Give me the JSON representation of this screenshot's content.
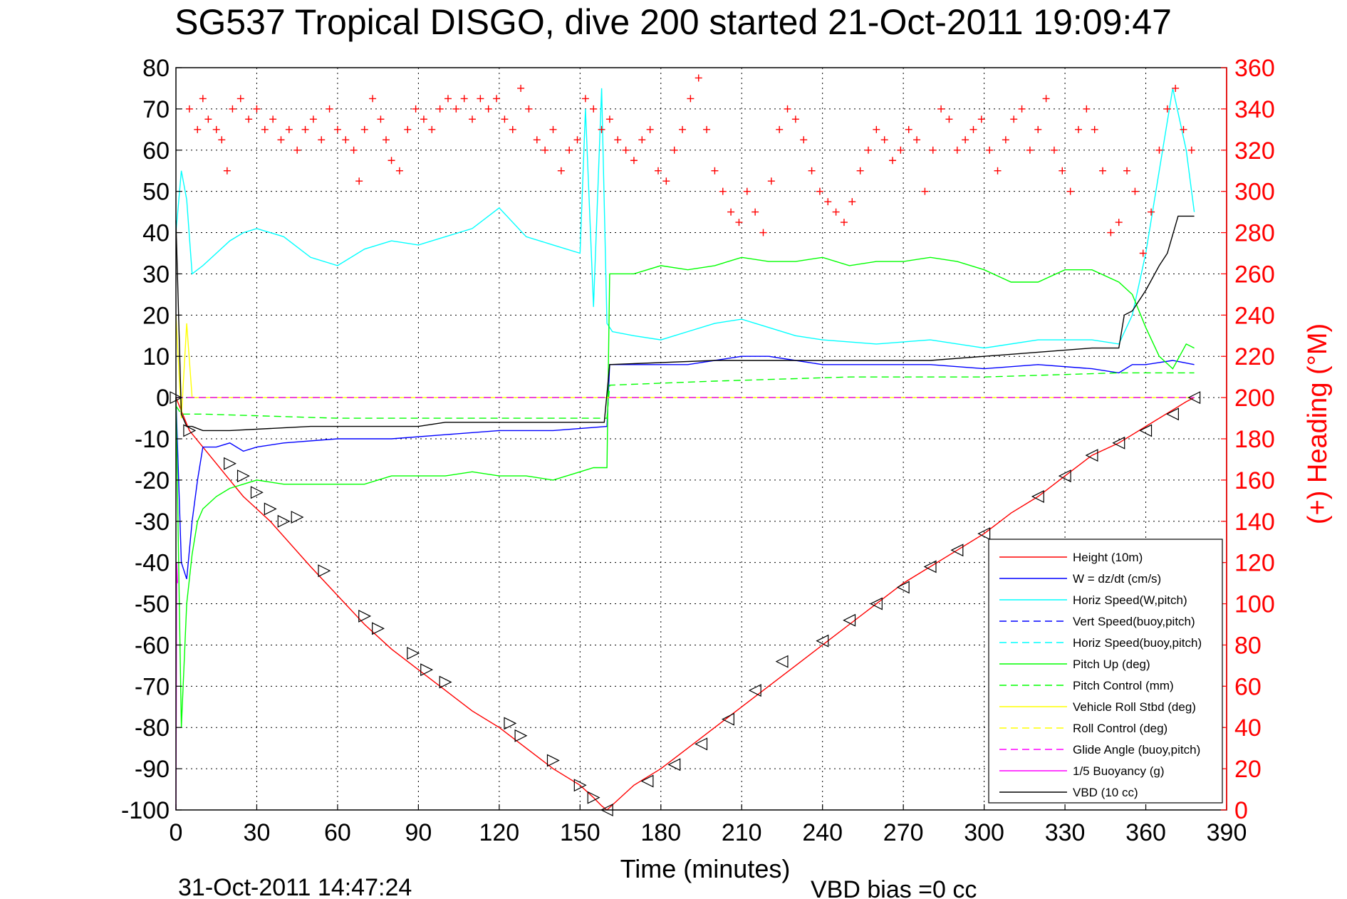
{
  "chart_data": {
    "type": "line",
    "title": "SG537 Tropical DISGO, dive 200 started 21-Oct-2011 19:09:47",
    "xlabel": "Time (minutes)",
    "ylabel_right": "(+) Heading (°M)",
    "footer_date": "31-Oct-2011 14:47:24",
    "footer_note": "VBD bias =0 cc",
    "xlim": [
      0,
      390
    ],
    "ylim_left": [
      -100,
      80
    ],
    "ylim_right": [
      0,
      360
    ],
    "x_ticks": [
      "0",
      "30",
      "60",
      "90",
      "120",
      "150",
      "180",
      "210",
      "240",
      "270",
      "300",
      "330",
      "360",
      "390"
    ],
    "y_ticks_left": [
      "80",
      "70",
      "60",
      "50",
      "40",
      "30",
      "20",
      "10",
      "0",
      "-10",
      "-20",
      "-30",
      "-40",
      "-50",
      "-60",
      "-70",
      "-80",
      "-90",
      "-100"
    ],
    "y_ticks_right": [
      "360",
      "340",
      "320",
      "300",
      "280",
      "260",
      "240",
      "220",
      "200",
      "180",
      "160",
      "140",
      "120",
      "100",
      "80",
      "60",
      "40",
      "20",
      "0"
    ],
    "grid": true,
    "legend_position": "bottom-right",
    "colors": {
      "height": "#ff0000",
      "w": "#0000ff",
      "horiz_speed": "#00ffff",
      "pitch": "#00ff00",
      "roll": "#ffff00",
      "glide": "#ff00ff",
      "vbd": "#000000",
      "heading": "#ff0000"
    },
    "legend": [
      {
        "label": "Height (10m)",
        "color": "#ff0000",
        "dash": false
      },
      {
        "label": "W = dz/dt (cm/s)",
        "color": "#0000ff",
        "dash": false
      },
      {
        "label": "Horiz Speed(W,pitch)",
        "color": "#00ffff",
        "dash": false
      },
      {
        "label": "Vert Speed(buoy,pitch)",
        "color": "#0000ff",
        "dash": true
      },
      {
        "label": "Horiz Speed(buoy,pitch)",
        "color": "#00ffff",
        "dash": true
      },
      {
        "label": "Pitch Up (deg)",
        "color": "#00ff00",
        "dash": false
      },
      {
        "label": "Pitch Control (mm)",
        "color": "#00ff00",
        "dash": true
      },
      {
        "label": "Vehicle Roll Stbd (deg)",
        "color": "#ffff00",
        "dash": false
      },
      {
        "label": "Roll Control (deg)",
        "color": "#ffff00",
        "dash": true
      },
      {
        "label": "Glide Angle (buoy,pitch)",
        "color": "#ff00ff",
        "dash": true
      },
      {
        "label": "1/5 Buoyancy (g)",
        "color": "#ff00ff",
        "dash": false
      },
      {
        "label": "VBD (10 cc)",
        "color": "#000000",
        "dash": false
      }
    ],
    "series": [
      {
        "name": "Height (10m)",
        "axis": "left",
        "color": "#ff0000",
        "dash": false,
        "x": [
          0,
          5,
          10,
          15,
          20,
          25,
          30,
          35,
          50,
          60,
          70,
          80,
          90,
          100,
          110,
          120,
          130,
          140,
          150,
          155,
          158,
          160,
          170,
          180,
          190,
          200,
          210,
          220,
          230,
          240,
          250,
          260,
          270,
          280,
          290,
          300,
          310,
          320,
          330,
          340,
          350,
          360,
          370,
          375,
          378
        ],
        "y": [
          0,
          -8,
          -12,
          -16,
          -20,
          -24,
          -27,
          -30,
          -41,
          -48,
          -55,
          -61,
          -66,
          -71,
          -76,
          -80,
          -85,
          -90,
          -94,
          -97,
          -99,
          -100,
          -94,
          -90,
          -85,
          -80,
          -75,
          -70,
          -65,
          -60,
          -55,
          -50,
          -45,
          -41,
          -37,
          -33,
          -28,
          -24,
          -19,
          -14,
          -11,
          -7,
          -3,
          -1,
          0
        ]
      },
      {
        "name": "W = dz/dt (cm/s)",
        "axis": "left",
        "color": "#0000ff",
        "dash": false,
        "x": [
          0,
          2,
          4,
          6,
          8,
          10,
          15,
          20,
          25,
          30,
          40,
          60,
          80,
          100,
          120,
          140,
          160,
          161,
          170,
          180,
          190,
          200,
          210,
          220,
          230,
          240,
          260,
          280,
          300,
          320,
          340,
          350,
          355,
          360,
          370,
          378
        ],
        "y": [
          0,
          -40,
          -44,
          -30,
          -20,
          -12,
          -12,
          -11,
          -13,
          -12,
          -11,
          -10,
          -10,
          -9,
          -8,
          -8,
          -7,
          8,
          8,
          8,
          8,
          9,
          10,
          10,
          9,
          8,
          8,
          8,
          7,
          8,
          7,
          6,
          8,
          8,
          9,
          8
        ]
      },
      {
        "name": "Horiz Speed(W,pitch)",
        "axis": "left",
        "color": "#00ffff",
        "dash": false,
        "x": [
          0,
          2,
          4,
          6,
          10,
          15,
          20,
          25,
          30,
          40,
          50,
          60,
          70,
          80,
          90,
          100,
          110,
          120,
          130,
          140,
          150,
          152,
          155,
          158,
          160,
          162,
          170,
          180,
          190,
          200,
          210,
          220,
          230,
          240,
          260,
          280,
          300,
          320,
          340,
          350,
          355,
          360,
          365,
          370,
          375,
          378
        ],
        "y": [
          40,
          55,
          48,
          30,
          32,
          35,
          38,
          40,
          41,
          39,
          34,
          32,
          36,
          38,
          37,
          39,
          41,
          46,
          39,
          37,
          35,
          70,
          22,
          75,
          18,
          16,
          15,
          14,
          16,
          18,
          19,
          17,
          15,
          14,
          13,
          14,
          12,
          14,
          14,
          13,
          20,
          35,
          55,
          75,
          60,
          45
        ]
      },
      {
        "name": "Vert Speed(buoy,pitch)",
        "axis": "left",
        "color": "#0000ff",
        "dash": true,
        "x": [
          0,
          378
        ],
        "y": [
          0,
          0
        ]
      },
      {
        "name": "Horiz Speed(buoy,pitch)",
        "axis": "left",
        "color": "#00ffff",
        "dash": true,
        "x": [
          0,
          378
        ],
        "y": [
          0,
          0
        ]
      },
      {
        "name": "Pitch Up (deg)",
        "axis": "left",
        "color": "#00ff00",
        "dash": false,
        "x": [
          0,
          2,
          4,
          6,
          8,
          10,
          15,
          20,
          25,
          30,
          40,
          50,
          60,
          70,
          80,
          90,
          100,
          110,
          120,
          130,
          140,
          150,
          155,
          158,
          160,
          161,
          170,
          180,
          190,
          200,
          210,
          220,
          230,
          240,
          250,
          260,
          270,
          280,
          290,
          300,
          310,
          320,
          330,
          340,
          350,
          355,
          360,
          365,
          370,
          375,
          378
        ],
        "y": [
          0,
          -80,
          -50,
          -38,
          -30,
          -27,
          -24,
          -22,
          -21,
          -20,
          -21,
          -21,
          -21,
          -21,
          -19,
          -19,
          -19,
          -18,
          -19,
          -19,
          -20,
          -18,
          -17,
          -17,
          -17,
          30,
          30,
          32,
          31,
          32,
          34,
          33,
          33,
          34,
          32,
          33,
          33,
          34,
          33,
          31,
          28,
          28,
          31,
          31,
          28,
          25,
          17,
          10,
          7,
          13,
          12
        ]
      },
      {
        "name": "Pitch Control (mm)",
        "axis": "left",
        "color": "#00ff00",
        "dash": true,
        "x": [
          0,
          2,
          10,
          60,
          120,
          160,
          161,
          200,
          250,
          300,
          350,
          378
        ],
        "y": [
          -2,
          -4,
          -4,
          -5,
          -5,
          -5,
          3,
          4,
          5,
          5,
          6,
          6
        ]
      },
      {
        "name": "Vehicle Roll Stbd (deg)",
        "axis": "left",
        "color": "#ffff00",
        "dash": false,
        "x": [
          0,
          2,
          4,
          6,
          8,
          20,
          40,
          60,
          80,
          100,
          120,
          140,
          160,
          180,
          200,
          220,
          240,
          260,
          280,
          300,
          320,
          340,
          360,
          378
        ],
        "y": [
          20,
          -5,
          18,
          0,
          0,
          0,
          0,
          0,
          0,
          0,
          0,
          0,
          0,
          0,
          0,
          0,
          0,
          0,
          0,
          0,
          0,
          0,
          0,
          0
        ]
      },
      {
        "name": "Roll Control (deg)",
        "axis": "left",
        "color": "#ffff00",
        "dash": true,
        "x": [
          0,
          378
        ],
        "y": [
          0,
          0
        ]
      },
      {
        "name": "Glide Angle (buoy,pitch)",
        "axis": "left",
        "color": "#ff00ff",
        "dash": true,
        "x": [
          0,
          378
        ],
        "y": [
          0,
          0
        ]
      },
      {
        "name": "1/5 Buoyancy (g)",
        "axis": "left",
        "color": "#ff00ff",
        "dash": false,
        "x": [
          0,
          0.3,
          0.6
        ],
        "y": [
          -100,
          -40,
          -45
        ]
      },
      {
        "name": "VBD (10 cc)",
        "axis": "left",
        "color": "#000000",
        "dash": false,
        "x": [
          0,
          2,
          4,
          6,
          10,
          20,
          50,
          90,
          100,
          140,
          159,
          161,
          200,
          240,
          280,
          300,
          320,
          340,
          350,
          352,
          355,
          360,
          365,
          368,
          372,
          378
        ],
        "y": [
          43,
          -4,
          -7,
          -7,
          -8,
          -8,
          -7,
          -7,
          -6,
          -6,
          -6,
          8,
          9,
          9,
          9,
          10,
          11,
          12,
          12,
          20,
          21,
          26,
          32,
          35,
          44,
          44
        ]
      },
      {
        "name": "(+) Heading (°M)",
        "axis": "right",
        "color": "#ff0000",
        "dash": false,
        "marker": "plus",
        "x": [
          5,
          8,
          10,
          12,
          15,
          17,
          19,
          21,
          24,
          27,
          30,
          33,
          36,
          39,
          42,
          45,
          48,
          51,
          54,
          57,
          60,
          63,
          66,
          68,
          70,
          73,
          76,
          78,
          80,
          83,
          86,
          89,
          92,
          95,
          98,
          101,
          104,
          107,
          110,
          113,
          116,
          119,
          122,
          125,
          128,
          131,
          134,
          137,
          140,
          143,
          146,
          149,
          152,
          155,
          158,
          161,
          164,
          167,
          170,
          173,
          176,
          179,
          182,
          185,
          188,
          191,
          194,
          197,
          200,
          203,
          206,
          209,
          212,
          215,
          218,
          221,
          224,
          227,
          230,
          233,
          236,
          239,
          242,
          245,
          248,
          251,
          254,
          257,
          260,
          263,
          266,
          269,
          272,
          275,
          278,
          281,
          284,
          287,
          290,
          293,
          296,
          299,
          302,
          305,
          308,
          311,
          314,
          317,
          320,
          323,
          326,
          329,
          332,
          335,
          338,
          341,
          344,
          347,
          350,
          353,
          356,
          359,
          362,
          365,
          368,
          371,
          374,
          377
        ],
        "y": [
          340,
          330,
          345,
          335,
          330,
          325,
          310,
          340,
          345,
          335,
          340,
          330,
          335,
          325,
          330,
          320,
          330,
          335,
          325,
          340,
          330,
          325,
          320,
          305,
          330,
          345,
          335,
          325,
          315,
          310,
          330,
          340,
          335,
          330,
          340,
          345,
          340,
          345,
          335,
          345,
          340,
          345,
          335,
          330,
          350,
          340,
          325,
          320,
          330,
          310,
          320,
          325,
          345,
          340,
          330,
          335,
          325,
          320,
          315,
          325,
          330,
          310,
          305,
          320,
          330,
          345,
          355,
          330,
          310,
          300,
          290,
          285,
          300,
          290,
          280,
          305,
          330,
          340,
          335,
          325,
          310,
          300,
          295,
          290,
          285,
          295,
          310,
          320,
          330,
          325,
          315,
          320,
          330,
          325,
          300,
          320,
          340,
          335,
          320,
          325,
          330,
          335,
          320,
          310,
          325,
          335,
          340,
          320,
          330,
          345,
          320,
          310,
          300,
          330,
          340,
          330,
          310,
          280,
          285,
          310,
          300,
          270,
          290,
          320,
          340,
          350,
          330,
          320
        ]
      }
    ],
    "markers": {
      "name": "Height sample markers",
      "x": [
        0,
        5,
        20,
        25,
        30,
        35,
        40,
        45,
        55,
        70,
        75,
        88,
        93,
        100,
        124,
        128,
        140,
        150,
        155,
        160,
        175,
        185,
        195,
        205,
        215,
        225,
        240,
        250,
        260,
        270,
        280,
        290,
        300,
        320,
        330,
        340,
        350,
        360,
        370,
        378
      ],
      "y": [
        0,
        -8,
        -16,
        -19,
        -23,
        -27,
        -30,
        -29,
        -42,
        -53,
        -56,
        -62,
        -66,
        -69,
        -79,
        -82,
        -88,
        -94,
        -97,
        -100,
        -93,
        -89,
        -84,
        -78,
        -71,
        -64,
        -59,
        -54,
        -50,
        -46,
        -41,
        -37,
        -33,
        -24,
        -19,
        -14,
        -11,
        -8,
        -4,
        0
      ]
    }
  }
}
